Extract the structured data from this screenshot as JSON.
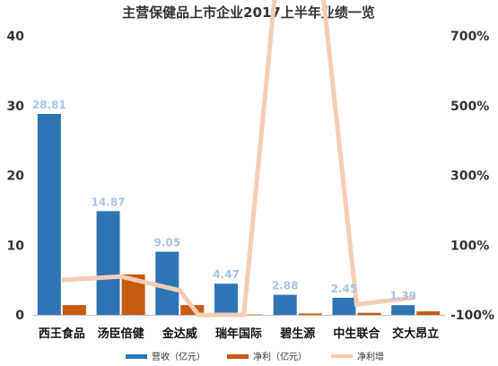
{
  "chart_data": {
    "type": "bar",
    "title": "主营保健品上市企业2017上半年业绩一览",
    "categories": [
      "西王食品",
      "汤臣倍健",
      "金达威",
      "瑞年国际",
      "碧生源",
      "中生联合",
      "交大昂立"
    ],
    "series": [
      {
        "name": "营收（亿元）",
        "type": "bar",
        "axis": "left",
        "color": "#2e75b6",
        "values": [
          28.81,
          14.87,
          9.05,
          4.47,
          2.88,
          2.45,
          1.39
        ],
        "labels": [
          "28.81",
          "14.87",
          "9.05",
          "4.47",
          "2.88",
          "2.45",
          "1.39"
        ]
      },
      {
        "name": "净利（亿元）",
        "type": "bar",
        "axis": "left",
        "color": "#c55a11",
        "values": [
          1.4,
          5.8,
          1.4,
          0.05,
          0.2,
          0.3,
          0.5
        ]
      },
      {
        "name": "净利增",
        "type": "line",
        "axis": "right",
        "color": "#f4cdb3",
        "values": [
          0.0,
          0.1,
          -0.3,
          -2.5,
          14.9,
          -0.7,
          -0.5
        ]
      }
    ],
    "y_left": {
      "range": [
        0,
        40
      ],
      "ticks": [
        "0",
        "10",
        "20",
        "30",
        "40"
      ]
    },
    "y_right": {
      "range": [
        -1.0,
        7.0
      ],
      "ticks": [
        "-100%",
        "100%",
        "300%",
        "500%",
        "700%"
      ],
      "tick_values": [
        -1.0,
        1.0,
        3.0,
        5.0,
        7.0
      ]
    },
    "grid": false,
    "legend_position": "bottom"
  }
}
